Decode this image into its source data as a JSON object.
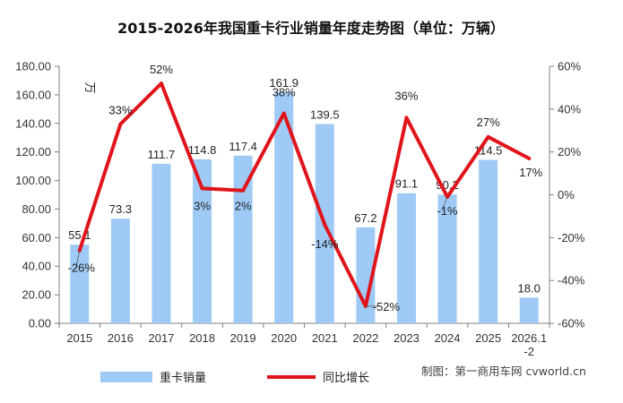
{
  "chart_data": {
    "type": "bar",
    "title": "2015-2026年我国重卡行业销量年度走势图（单位：万辆）",
    "unit_label": "万",
    "categories": [
      "2015",
      "2016",
      "2017",
      "2018",
      "2019",
      "2020",
      "2021",
      "2022",
      "2023",
      "2024",
      "2025",
      "2026.1-2"
    ],
    "series": [
      {
        "name": "重卡销量",
        "type": "bar",
        "axis": "left",
        "color": "#9ecaf5",
        "values": [
          55.1,
          73.3,
          111.7,
          114.8,
          117.4,
          161.9,
          139.5,
          67.2,
          91.1,
          90.2,
          114.5,
          18.0
        ],
        "labels": [
          "55.1",
          "73.3",
          "111.7",
          "114.8",
          "117.4",
          "161.9",
          "139.5",
          "67.2",
          "91.1",
          "90.2",
          "114.5",
          "18.0"
        ]
      },
      {
        "name": "同比增长",
        "type": "line",
        "axis": "right",
        "color": "#e0141b",
        "values": [
          -26,
          33,
          52,
          3,
          2,
          38,
          -14,
          -52,
          36,
          -1,
          27,
          17
        ],
        "labels": [
          "-26%",
          "33%",
          "52%",
          "3%",
          "2%",
          "38%",
          "-14%",
          "-52%",
          "36%",
          "-1%",
          "27%",
          "17%"
        ]
      }
    ],
    "y_left": {
      "min": 0,
      "max": 180,
      "step": 20,
      "ticks": [
        "0.00",
        "20.00",
        "40.00",
        "60.00",
        "80.00",
        "100.00",
        "120.00",
        "140.00",
        "160.00",
        "180.00"
      ]
    },
    "y_right": {
      "min": -60,
      "max": 60,
      "step": 20,
      "ticks": [
        "-60%",
        "-40%",
        "-20%",
        "0%",
        "20%",
        "40%",
        "60%"
      ]
    },
    "credit": "制图：第一商用车网 cvworld.cn"
  }
}
